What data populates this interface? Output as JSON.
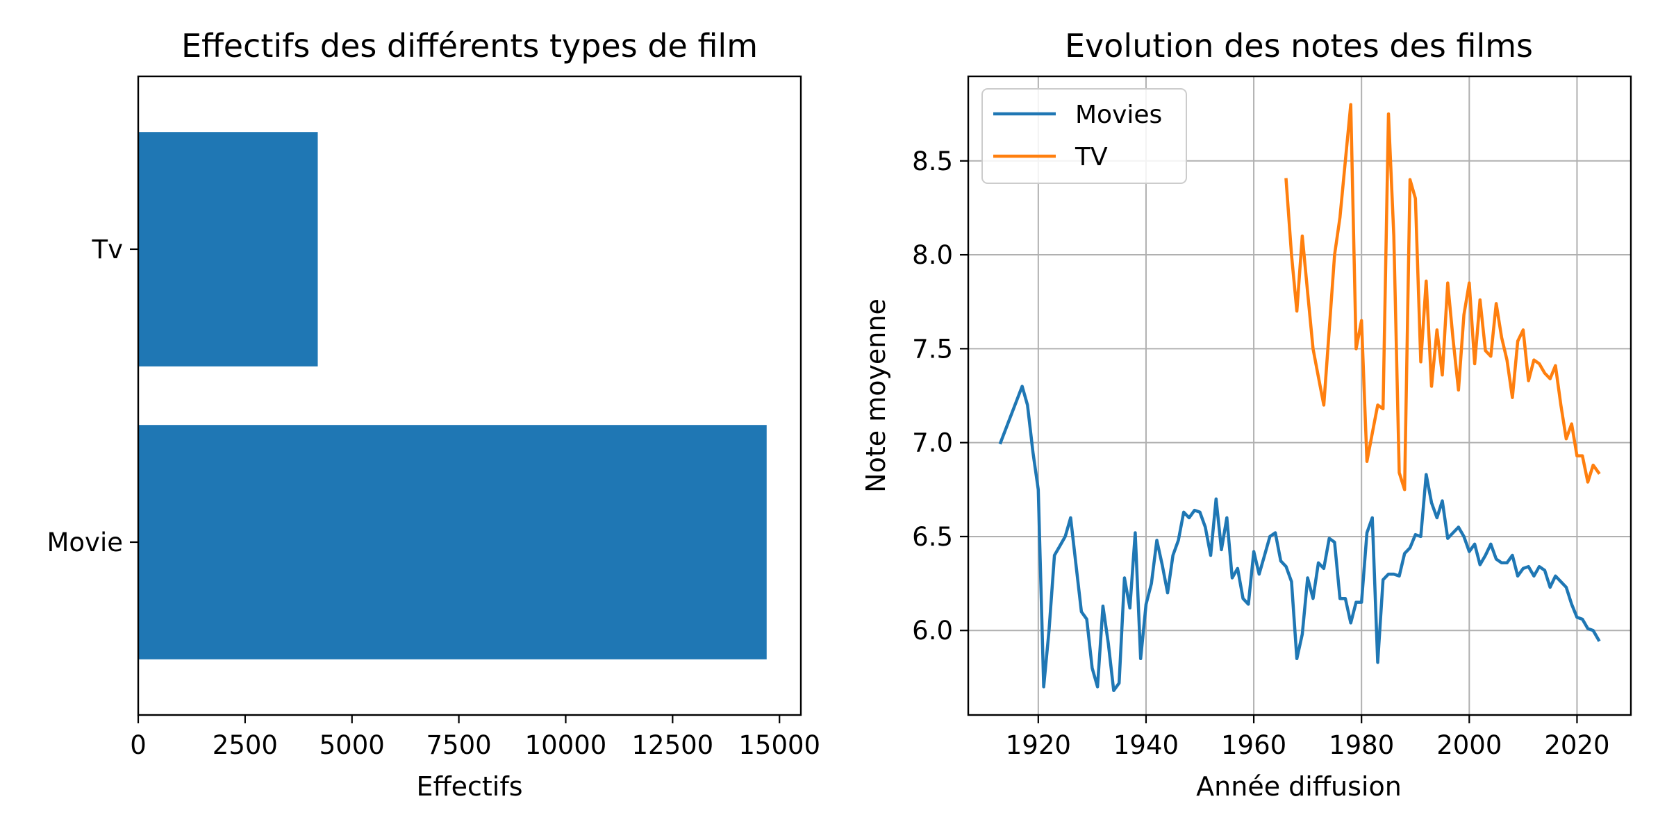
{
  "chart_data": [
    {
      "type": "bar",
      "orientation": "horizontal",
      "title": "Effectifs des différents types de film",
      "xlabel": "Effectifs",
      "ylabel": "",
      "categories": [
        "Movie",
        "Tv"
      ],
      "values": [
        14700,
        4200
      ],
      "xlim": [
        0,
        15500
      ],
      "xticks": [
        0,
        2500,
        5000,
        7500,
        10000,
        12500,
        15000
      ],
      "xtick_labels": [
        "0",
        "2500",
        "5000",
        "7500",
        "10000",
        "12500",
        "15000"
      ],
      "grid": false,
      "color": "#1f77b4"
    },
    {
      "type": "line",
      "title": "Evolution des notes des films",
      "xlabel": "Année diffusion",
      "ylabel": "Note moyenne",
      "xlim": [
        1907,
        2030
      ],
      "ylim": [
        5.55,
        8.95
      ],
      "xticks": [
        1920,
        1940,
        1960,
        1980,
        2000,
        2020
      ],
      "xtick_labels": [
        "1920",
        "1940",
        "1960",
        "1980",
        "2000",
        "2020"
      ],
      "yticks": [
        6.0,
        6.5,
        7.0,
        7.5,
        8.0,
        8.5
      ],
      "ytick_labels": [
        "6.0",
        "6.5",
        "7.0",
        "7.5",
        "8.0",
        "8.5"
      ],
      "grid": true,
      "legend": "top-left",
      "series": [
        {
          "name": "Movies",
          "color": "#1f77b4",
          "points": [
            [
              1913,
              7.0
            ],
            [
              1917,
              7.3
            ],
            [
              1918,
              7.2
            ],
            [
              1919,
              6.95
            ],
            [
              1920,
              6.75
            ],
            [
              1921,
              5.7
            ],
            [
              1922,
              6.0
            ],
            [
              1923,
              6.4
            ],
            [
              1924,
              6.45
            ],
            [
              1925,
              6.5
            ],
            [
              1926,
              6.6
            ],
            [
              1927,
              6.35
            ],
            [
              1928,
              6.1
            ],
            [
              1929,
              6.06
            ],
            [
              1930,
              5.8
            ],
            [
              1931,
              5.7
            ],
            [
              1932,
              6.13
            ],
            [
              1933,
              5.93
            ],
            [
              1934,
              5.68
            ],
            [
              1935,
              5.72
            ],
            [
              1936,
              6.28
            ],
            [
              1937,
              6.12
            ],
            [
              1938,
              6.52
            ],
            [
              1939,
              5.85
            ],
            [
              1940,
              6.14
            ],
            [
              1941,
              6.25
            ],
            [
              1942,
              6.48
            ],
            [
              1943,
              6.35
            ],
            [
              1944,
              6.2
            ],
            [
              1945,
              6.4
            ],
            [
              1946,
              6.48
            ],
            [
              1947,
              6.63
            ],
            [
              1948,
              6.6
            ],
            [
              1949,
              6.64
            ],
            [
              1950,
              6.63
            ],
            [
              1951,
              6.55
            ],
            [
              1952,
              6.4
            ],
            [
              1953,
              6.7
            ],
            [
              1954,
              6.43
            ],
            [
              1955,
              6.6
            ],
            [
              1956,
              6.28
            ],
            [
              1957,
              6.33
            ],
            [
              1958,
              6.17
            ],
            [
              1959,
              6.14
            ],
            [
              1960,
              6.42
            ],
            [
              1961,
              6.3
            ],
            [
              1962,
              6.4
            ],
            [
              1963,
              6.5
            ],
            [
              1964,
              6.52
            ],
            [
              1965,
              6.37
            ],
            [
              1966,
              6.34
            ],
            [
              1967,
              6.26
            ],
            [
              1968,
              5.85
            ],
            [
              1969,
              5.98
            ],
            [
              1970,
              6.28
            ],
            [
              1971,
              6.17
            ],
            [
              1972,
              6.36
            ],
            [
              1973,
              6.33
            ],
            [
              1974,
              6.49
            ],
            [
              1975,
              6.47
            ],
            [
              1976,
              6.17
            ],
            [
              1977,
              6.17
            ],
            [
              1978,
              6.04
            ],
            [
              1979,
              6.15
            ],
            [
              1980,
              6.15
            ],
            [
              1981,
              6.52
            ],
            [
              1982,
              6.6
            ],
            [
              1983,
              5.83
            ],
            [
              1984,
              6.27
            ],
            [
              1985,
              6.3
            ],
            [
              1986,
              6.3
            ],
            [
              1987,
              6.29
            ],
            [
              1988,
              6.41
            ],
            [
              1989,
              6.44
            ],
            [
              1990,
              6.51
            ],
            [
              1991,
              6.5
            ],
            [
              1992,
              6.83
            ],
            [
              1993,
              6.68
            ],
            [
              1994,
              6.6
            ],
            [
              1995,
              6.69
            ],
            [
              1996,
              6.49
            ],
            [
              1997,
              6.52
            ],
            [
              1998,
              6.55
            ],
            [
              1999,
              6.5
            ],
            [
              2000,
              6.42
            ],
            [
              2001,
              6.46
            ],
            [
              2002,
              6.35
            ],
            [
              2003,
              6.4
            ],
            [
              2004,
              6.46
            ],
            [
              2005,
              6.38
            ],
            [
              2006,
              6.36
            ],
            [
              2007,
              6.36
            ],
            [
              2008,
              6.4
            ],
            [
              2009,
              6.29
            ],
            [
              2010,
              6.33
            ],
            [
              2011,
              6.34
            ],
            [
              2012,
              6.29
            ],
            [
              2013,
              6.34
            ],
            [
              2014,
              6.32
            ],
            [
              2015,
              6.23
            ],
            [
              2016,
              6.29
            ],
            [
              2017,
              6.26
            ],
            [
              2018,
              6.23
            ],
            [
              2019,
              6.14
            ],
            [
              2020,
              6.07
            ],
            [
              2021,
              6.06
            ],
            [
              2022,
              6.01
            ],
            [
              2023,
              6.0
            ],
            [
              2024,
              5.95
            ]
          ]
        },
        {
          "name": "TV",
          "color": "#ff7f0e",
          "points": [
            [
              1966,
              8.4
            ],
            [
              1967,
              8.0
            ],
            [
              1968,
              7.7
            ],
            [
              1969,
              8.1
            ],
            [
              1970,
              7.8
            ],
            [
              1971,
              7.5
            ],
            [
              1972,
              7.35
            ],
            [
              1973,
              7.2
            ],
            [
              1974,
              7.6
            ],
            [
              1975,
              8.0
            ],
            [
              1976,
              8.2
            ],
            [
              1977,
              8.5
            ],
            [
              1978,
              8.8
            ],
            [
              1979,
              7.5
            ],
            [
              1980,
              7.65
            ],
            [
              1981,
              6.9
            ],
            [
              1982,
              7.05
            ],
            [
              1983,
              7.2
            ],
            [
              1984,
              7.18
            ],
            [
              1985,
              8.75
            ],
            [
              1986,
              8.1
            ],
            [
              1987,
              6.84
            ],
            [
              1988,
              6.75
            ],
            [
              1989,
              8.4
            ],
            [
              1990,
              8.3
            ],
            [
              1991,
              7.43
            ],
            [
              1992,
              7.86
            ],
            [
              1993,
              7.3
            ],
            [
              1994,
              7.6
            ],
            [
              1995,
              7.36
            ],
            [
              1996,
              7.85
            ],
            [
              1997,
              7.55
            ],
            [
              1998,
              7.28
            ],
            [
              1999,
              7.68
            ],
            [
              2000,
              7.85
            ],
            [
              2001,
              7.42
            ],
            [
              2002,
              7.76
            ],
            [
              2003,
              7.49
            ],
            [
              2004,
              7.46
            ],
            [
              2005,
              7.74
            ],
            [
              2006,
              7.56
            ],
            [
              2007,
              7.44
            ],
            [
              2008,
              7.24
            ],
            [
              2009,
              7.54
            ],
            [
              2010,
              7.6
            ],
            [
              2011,
              7.33
            ],
            [
              2012,
              7.44
            ],
            [
              2013,
              7.42
            ],
            [
              2014,
              7.37
            ],
            [
              2015,
              7.34
            ],
            [
              2016,
              7.41
            ],
            [
              2017,
              7.2
            ],
            [
              2018,
              7.02
            ],
            [
              2019,
              7.1
            ],
            [
              2020,
              6.93
            ],
            [
              2021,
              6.93
            ],
            [
              2022,
              6.79
            ],
            [
              2023,
              6.88
            ],
            [
              2024,
              6.84
            ]
          ]
        }
      ]
    }
  ]
}
